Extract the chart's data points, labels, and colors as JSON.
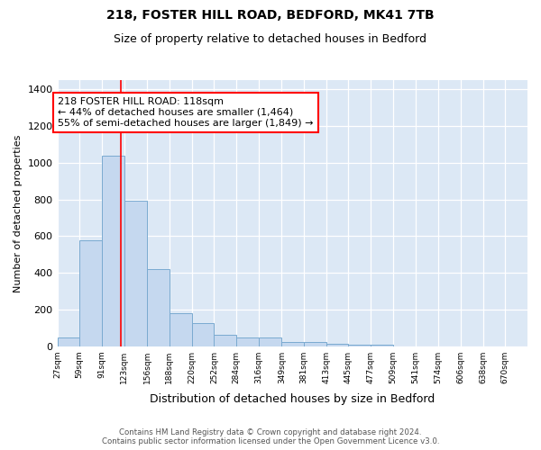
{
  "title": "218, FOSTER HILL ROAD, BEDFORD, MK41 7TB",
  "subtitle": "Size of property relative to detached houses in Bedford",
  "xlabel": "Distribution of detached houses by size in Bedford",
  "ylabel": "Number of detached properties",
  "bar_color": "#c5d8ef",
  "bar_edge_color": "#7aaad0",
  "background_color": "#dce8f5",
  "grid_color": "#ffffff",
  "red_line_x": 118,
  "annotation_text": "218 FOSTER HILL ROAD: 118sqm\n← 44% of detached houses are smaller (1,464)\n55% of semi-detached houses are larger (1,849) →",
  "footer_line1": "Contains HM Land Registry data © Crown copyright and database right 2024.",
  "footer_line2": "Contains public sector information licensed under the Open Government Licence v3.0.",
  "bin_edges": [
    27,
    59,
    91,
    123,
    156,
    188,
    220,
    252,
    284,
    316,
    349,
    381,
    413,
    445,
    477,
    509,
    541,
    574,
    606,
    638,
    670
  ],
  "bin_labels": [
    "27sqm",
    "59sqm",
    "91sqm",
    "123sqm",
    "156sqm",
    "188sqm",
    "220sqm",
    "252sqm",
    "284sqm",
    "316sqm",
    "349sqm",
    "381sqm",
    "413sqm",
    "445sqm",
    "477sqm",
    "509sqm",
    "541sqm",
    "574sqm",
    "606sqm",
    "638sqm",
    "670sqm"
  ],
  "bar_heights": [
    47,
    575,
    1040,
    795,
    420,
    180,
    125,
    62,
    48,
    47,
    25,
    22,
    15,
    10,
    10,
    0,
    0,
    0,
    0,
    0
  ],
  "ylim": [
    0,
    1450
  ],
  "yticks": [
    0,
    200,
    400,
    600,
    800,
    1000,
    1200,
    1400
  ]
}
